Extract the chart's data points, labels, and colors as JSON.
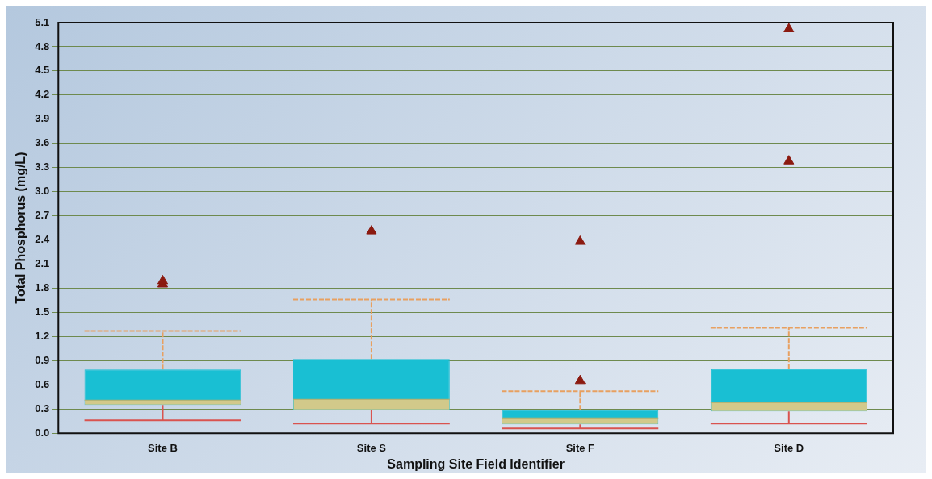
{
  "chart_data": {
    "type": "box",
    "xlabel": "Sampling Site Field Identifier",
    "ylabel": "Total Phosphorus (mg/L)",
    "categories": [
      "Site B",
      "Site S",
      "Site F",
      "Site D"
    ],
    "series": [
      {
        "color": "#19bfd3",
        "boxes": [
          {
            "low": 0.16,
            "q1": 0.35,
            "median": 0.41,
            "q3": 0.79,
            "high": 1.27,
            "outliers": [
              1.85,
              1.89
            ]
          },
          {
            "low": 0.12,
            "q1": 0.29,
            "median": 0.42,
            "q3": 0.92,
            "high": 1.66,
            "outliers": [
              2.51
            ]
          },
          {
            "low": 0.06,
            "q1": 0.11,
            "median": 0.19,
            "q3": 0.29,
            "high": 0.52,
            "outliers": [
              0.65,
              2.38
            ]
          },
          {
            "low": 0.12,
            "q1": 0.27,
            "median": 0.38,
            "q3": 0.8,
            "high": 1.31,
            "outliers": [
              3.38,
              5.02
            ]
          }
        ]
      }
    ],
    "ylim": [
      0,
      5.1
    ],
    "yticks": [
      {
        "value": 0,
        "label": "0.0"
      },
      0.3,
      0.6,
      0.9,
      1.2,
      1.5,
      1.8,
      2.1,
      2.4,
      2.7,
      {
        "value": 3,
        "label": "3.0"
      },
      3.3,
      3.6,
      3.9,
      4.2,
      4.5,
      4.8,
      5.1
    ],
    "grid": "y",
    "marker": "triangle",
    "legend": false
  }
}
